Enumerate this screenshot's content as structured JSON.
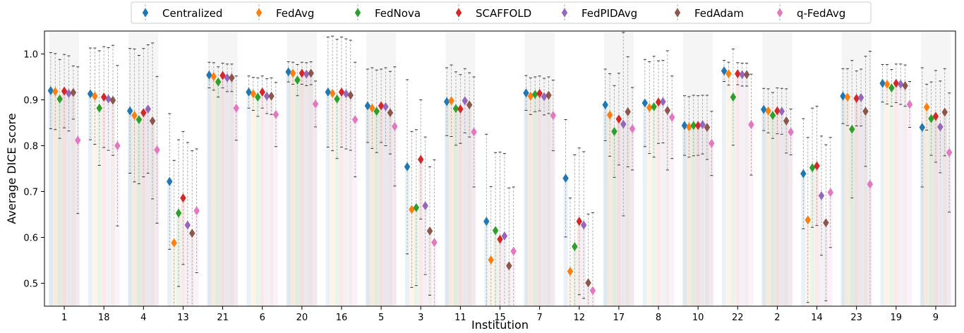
{
  "chart_data": {
    "type": "scatter",
    "xlabel": "Institution",
    "ylabel": "Average DICE score",
    "ylim": [
      0.45,
      1.05
    ],
    "yticks": [
      0.5,
      0.6,
      0.7,
      0.8,
      0.9,
      1.0
    ],
    "ytick_labels": [
      "0.5",
      "0.6",
      "0.7",
      "0.8",
      "0.9",
      "1.0"
    ],
    "legend_position": "top-center",
    "grid": false,
    "categories": [
      "1",
      "18",
      "4",
      "13",
      "21",
      "6",
      "20",
      "16",
      "5",
      "3",
      "11",
      "15",
      "7",
      "12",
      "17",
      "8",
      "10",
      "22",
      "2",
      "14",
      "23",
      "19",
      "9"
    ],
    "series": [
      {
        "name": "Centralized",
        "color": "#1f77b4",
        "values": [
          0.92,
          0.913,
          0.876,
          0.722,
          0.954,
          0.917,
          0.961,
          0.917,
          0.887,
          0.754,
          0.896,
          0.635,
          0.915,
          0.729,
          0.889,
          0.893,
          0.844,
          0.963,
          0.879,
          0.739,
          0.908,
          0.936,
          0.84
        ],
        "errors": [
          0.083,
          0.1,
          0.136,
          0.148,
          0.028,
          0.035,
          0.022,
          0.12,
          0.08,
          0.19,
          0.074,
          0.19,
          0.038,
          0.128,
          0.078,
          0.095,
          0.065,
          0.023,
          0.046,
          0.12,
          0.06,
          0.041,
          0.13
        ]
      },
      {
        "name": "FedAvg",
        "color": "#ff7f0e",
        "values": [
          0.918,
          0.908,
          0.866,
          0.588,
          0.951,
          0.913,
          0.958,
          0.914,
          0.882,
          0.661,
          0.898,
          0.551,
          0.908,
          0.526,
          0.867,
          0.883,
          0.841,
          0.957,
          0.876,
          0.638,
          0.906,
          0.934,
          0.884
        ],
        "errors": [
          0.083,
          0.105,
          0.145,
          0.18,
          0.03,
          0.036,
          0.024,
          0.125,
          0.088,
          0.17,
          0.078,
          0.16,
          0.04,
          0.16,
          0.09,
          0.1,
          0.066,
          0.025,
          0.048,
          0.18,
          0.062,
          0.043,
          0.05
        ]
      },
      {
        "name": "FedNova",
        "color": "#2ca02c",
        "values": [
          0.902,
          0.882,
          0.857,
          0.653,
          0.939,
          0.906,
          0.943,
          0.902,
          0.875,
          0.665,
          0.881,
          0.615,
          0.912,
          0.58,
          0.831,
          0.885,
          0.844,
          0.906,
          0.866,
          0.752,
          0.836,
          0.926,
          0.859
        ],
        "errors": [
          0.086,
          0.125,
          0.14,
          0.16,
          0.033,
          0.042,
          0.034,
          0.13,
          0.09,
          0.17,
          0.08,
          0.17,
          0.038,
          0.2,
          0.1,
          0.11,
          0.066,
          0.105,
          0.05,
          0.13,
          0.15,
          0.04,
          0.08
        ]
      },
      {
        "name": "SCAFFOLD",
        "color": "#d62728",
        "values": [
          0.919,
          0.906,
          0.872,
          0.686,
          0.953,
          0.917,
          0.958,
          0.917,
          0.887,
          0.77,
          0.88,
          0.596,
          0.914,
          0.635,
          0.858,
          0.895,
          0.844,
          0.957,
          0.876,
          0.756,
          0.903,
          0.936,
          0.864
        ],
        "errors": [
          0.08,
          0.11,
          0.14,
          0.145,
          0.027,
          0.035,
          0.024,
          0.12,
          0.08,
          0.13,
          0.075,
          0.19,
          0.038,
          0.16,
          0.1,
          0.09,
          0.065,
          0.024,
          0.05,
          0.13,
          0.06,
          0.042,
          0.1
        ]
      },
      {
        "name": "FedPIDAvg",
        "color": "#9467bd",
        "values": [
          0.914,
          0.902,
          0.88,
          0.627,
          0.948,
          0.908,
          0.956,
          0.913,
          0.885,
          0.669,
          0.898,
          0.603,
          0.907,
          0.627,
          0.847,
          0.896,
          0.846,
          0.955,
          0.875,
          0.691,
          0.905,
          0.934,
          0.841
        ],
        "errors": [
          0.082,
          0.112,
          0.14,
          0.18,
          0.03,
          0.038,
          0.025,
          0.12,
          0.085,
          0.15,
          0.07,
          0.18,
          0.04,
          0.16,
          0.2,
          0.09,
          0.064,
          0.025,
          0.05,
          0.13,
          0.062,
          0.044,
          0.1
        ]
      },
      {
        "name": "FedAdam",
        "color": "#8c564b",
        "values": [
          0.916,
          0.899,
          0.854,
          0.609,
          0.948,
          0.908,
          0.958,
          0.91,
          0.872,
          0.614,
          0.889,
          0.538,
          0.91,
          0.501,
          0.874,
          0.877,
          0.84,
          0.955,
          0.854,
          0.632,
          0.875,
          0.931,
          0.873
        ],
        "errors": [
          0.058,
          0.12,
          0.17,
          0.18,
          0.03,
          0.04,
          0.025,
          0.12,
          0.09,
          0.14,
          0.07,
          0.17,
          0.04,
          0.15,
          0.12,
          0.13,
          0.07,
          0.025,
          0.07,
          0.17,
          0.12,
          0.045,
          0.095
        ]
      },
      {
        "name": "q-FedAvg",
        "color": "#e377c2",
        "values": [
          0.812,
          0.8,
          0.791,
          0.658,
          0.882,
          0.868,
          0.891,
          0.857,
          0.842,
          0.589,
          0.83,
          0.57,
          0.866,
          0.484,
          0.837,
          0.862,
          0.805,
          0.846,
          0.83,
          0.698,
          0.716,
          0.89,
          0.785
        ],
        "errors": [
          0.16,
          0.175,
          0.16,
          0.135,
          0.07,
          0.07,
          0.05,
          0.125,
          0.13,
          0.18,
          0.12,
          0.14,
          0.077,
          0.17,
          0.09,
          0.09,
          0.07,
          0.11,
          0.05,
          0.12,
          0.29,
          0.05,
          0.13
        ]
      }
    ]
  }
}
